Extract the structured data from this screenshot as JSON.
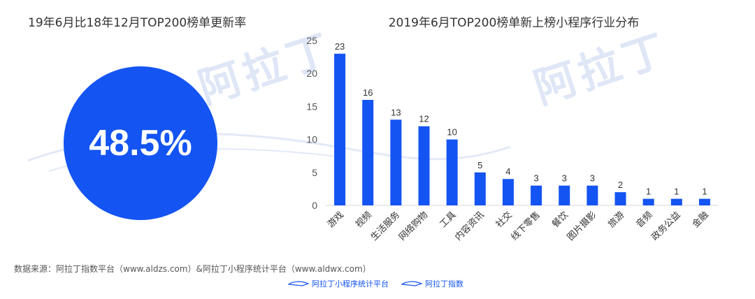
{
  "watermark": {
    "text": "阿拉丁"
  },
  "left_panel": {
    "title": "19年6月比18年12月TOP200榜单更新率",
    "value": "48.5%",
    "color": "#1454f2"
  },
  "chart_data": {
    "type": "bar",
    "title": "2019年6月TOP200榜单新上榜小程序行业分布",
    "categories": [
      "游戏",
      "视频",
      "生活服务",
      "网络购物",
      "工具",
      "内容资讯",
      "社交",
      "线下零售",
      "餐饮",
      "图片摄影",
      "旅游",
      "音频",
      "政务公益",
      "金融"
    ],
    "values": [
      23,
      16,
      13,
      12,
      10,
      5,
      4,
      3,
      3,
      3,
      2,
      1,
      1,
      1
    ],
    "yticks": [
      0,
      5,
      10,
      15,
      20,
      25
    ],
    "ylim": [
      0,
      25
    ],
    "xlabel": "",
    "ylabel": "",
    "grid": false,
    "bar_color": "#1454f2"
  },
  "footer": {
    "source": "数据来源：阿拉丁指数平台（www.aldzs.com）&阿拉丁小程序统计平台（www.aldwx.com）",
    "logo1": "阿拉丁小程序统计平台",
    "logo2": "阿拉丁指数"
  }
}
